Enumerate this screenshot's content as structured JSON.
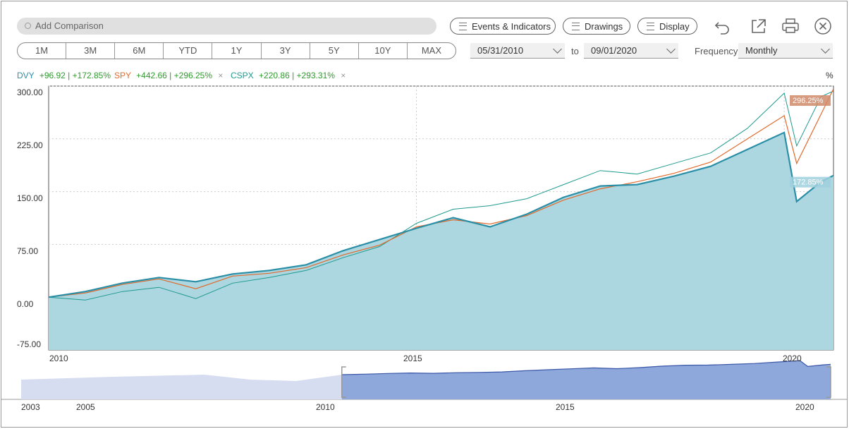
{
  "search": {
    "placeholder": "Add Comparison"
  },
  "toolbar": {
    "events_label": "Events & Indicators",
    "drawings_label": "Drawings",
    "display_label": "Display"
  },
  "icons": [
    "undo-icon",
    "popout-icon",
    "print-icon",
    "close-icon",
    "search-icon",
    "list-icon"
  ],
  "ranges": [
    "1M",
    "3M",
    "6M",
    "YTD",
    "1Y",
    "3Y",
    "5Y",
    "10Y",
    "MAX"
  ],
  "dates": {
    "from": "05/31/2010",
    "to_label": "to",
    "to": "09/01/2020"
  },
  "frequency": {
    "label": "Frequency",
    "value": "Monthly"
  },
  "legend": [
    {
      "symbol": "DVY",
      "change": "+96.92 | +172.85%",
      "color": "#2a8fa6"
    },
    {
      "symbol": "SPY",
      "change": "+442.66 | +296.25%",
      "color": "#e06a2c"
    },
    {
      "symbol": "CSPX",
      "change": "+220.86 | +293.31%",
      "color": "#1f9a8f"
    }
  ],
  "colors": {
    "gain": "#2e9a2e",
    "area": "#acd6e0",
    "dvy": "#2a8fa6",
    "spy": "#e06a2c",
    "cspx": "#1f9a8f",
    "navigator": "#8fa8dc"
  },
  "chart_data": {
    "type": "area",
    "unit": "%",
    "y_ticks": [
      "300.00",
      "225.00",
      "150.00",
      "75.00",
      "0.00",
      "-75.00"
    ],
    "ylim": [
      -75,
      300
    ],
    "x_ticks": [
      "2010",
      "2015",
      "2020"
    ],
    "xlim": [
      2010.0,
      2020.67
    ],
    "flags": {
      "spy": "296.25%",
      "dvy": "172.85%"
    },
    "series": [
      {
        "name": "DVY",
        "style": "area",
        "points": [
          [
            2010.0,
            0
          ],
          [
            2010.5,
            8
          ],
          [
            2011.0,
            20
          ],
          [
            2011.5,
            28
          ],
          [
            2012.0,
            22
          ],
          [
            2012.5,
            33
          ],
          [
            2013.0,
            38
          ],
          [
            2013.5,
            46
          ],
          [
            2014.0,
            66
          ],
          [
            2014.5,
            82
          ],
          [
            2015.0,
            98
          ],
          [
            2015.5,
            113
          ],
          [
            2016.0,
            100
          ],
          [
            2016.5,
            118
          ],
          [
            2017.0,
            142
          ],
          [
            2017.5,
            158
          ],
          [
            2018.0,
            160
          ],
          [
            2018.5,
            172
          ],
          [
            2019.0,
            186
          ],
          [
            2019.5,
            210
          ],
          [
            2020.0,
            234
          ],
          [
            2020.17,
            136
          ],
          [
            2020.5,
            164
          ],
          [
            2020.67,
            173
          ]
        ]
      },
      {
        "name": "SPY",
        "style": "line",
        "points": [
          [
            2010.0,
            0
          ],
          [
            2010.5,
            6
          ],
          [
            2011.0,
            18
          ],
          [
            2011.5,
            26
          ],
          [
            2012.0,
            12
          ],
          [
            2012.5,
            30
          ],
          [
            2013.0,
            34
          ],
          [
            2013.5,
            42
          ],
          [
            2014.0,
            60
          ],
          [
            2014.5,
            74
          ],
          [
            2015.0,
            100
          ],
          [
            2015.5,
            110
          ],
          [
            2016.0,
            104
          ],
          [
            2016.5,
            116
          ],
          [
            2017.0,
            138
          ],
          [
            2017.5,
            154
          ],
          [
            2018.0,
            164
          ],
          [
            2018.5,
            176
          ],
          [
            2019.0,
            192
          ],
          [
            2019.5,
            225
          ],
          [
            2020.0,
            258
          ],
          [
            2020.17,
            190
          ],
          [
            2020.5,
            260
          ],
          [
            2020.67,
            296
          ]
        ]
      },
      {
        "name": "CSPX",
        "style": "line",
        "points": [
          [
            2010.0,
            0
          ],
          [
            2010.5,
            -4
          ],
          [
            2011.0,
            8
          ],
          [
            2011.5,
            14
          ],
          [
            2012.0,
            -2
          ],
          [
            2012.5,
            20
          ],
          [
            2013.0,
            28
          ],
          [
            2013.5,
            38
          ],
          [
            2014.0,
            56
          ],
          [
            2014.5,
            72
          ],
          [
            2015.0,
            105
          ],
          [
            2015.5,
            125
          ],
          [
            2016.0,
            130
          ],
          [
            2016.5,
            140
          ],
          [
            2017.0,
            160
          ],
          [
            2017.5,
            180
          ],
          [
            2018.0,
            175
          ],
          [
            2018.5,
            190
          ],
          [
            2019.0,
            205
          ],
          [
            2019.5,
            240
          ],
          [
            2020.0,
            290
          ],
          [
            2020.17,
            215
          ],
          [
            2020.5,
            285
          ],
          [
            2020.67,
            293
          ]
        ]
      }
    ],
    "navigator": {
      "x_ticks": [
        "2003",
        "2005",
        "2010",
        "2015",
        "2020"
      ],
      "xlim": [
        2003.0,
        2020.67
      ],
      "selected": [
        2010.0,
        2020.67
      ]
    }
  }
}
